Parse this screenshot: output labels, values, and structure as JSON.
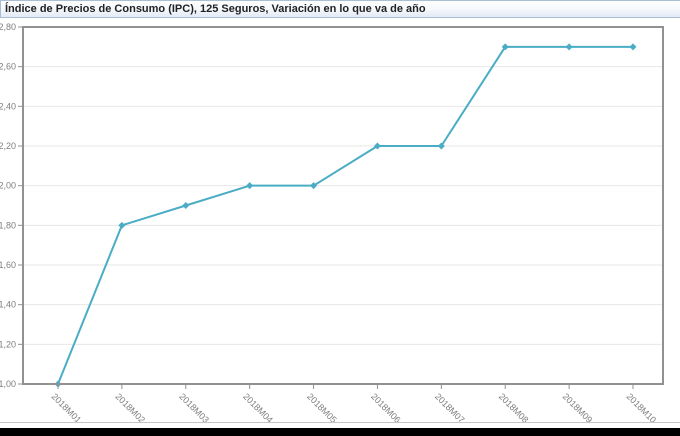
{
  "title_bar": {
    "title": "Índice de Precios de Consumo (IPC), 125 Seguros, Variación en lo que va de año"
  },
  "chart_data": {
    "type": "line",
    "title": "Índice de Precios de Consumo (IPC), 125 Seguros, Variación en lo que va de año",
    "categories": [
      "2018M01",
      "2018M02",
      "2018M03",
      "2018M04",
      "2018M05",
      "2018M06",
      "2018M07",
      "2018M08",
      "2018M09",
      "2018M10"
    ],
    "values": [
      1.0,
      1.8,
      1.9,
      2.0,
      2.0,
      2.2,
      2.2,
      2.7,
      2.7,
      2.7
    ],
    "ylim": [
      1.0,
      2.8
    ],
    "ytick_step": 0.2,
    "ytick_labels": [
      "1,00",
      "1,20",
      "1,40",
      "1,60",
      "1,80",
      "2,00",
      "2,20",
      "2,40",
      "2,60",
      "2,80"
    ],
    "xlabel": "",
    "ylabel": "",
    "legend": "none",
    "grid": "horizontal",
    "marker": "diamond",
    "line_color": "#4aacc5"
  },
  "colors": {
    "plot_border": "#919191",
    "gridline": "#e7e7e7",
    "tick_label": "#7e7e7e",
    "title_text": "#222222",
    "title_bar_border": "#a9bfd3",
    "separator": "#c5c5c5",
    "bottom_bar": "#000000"
  }
}
